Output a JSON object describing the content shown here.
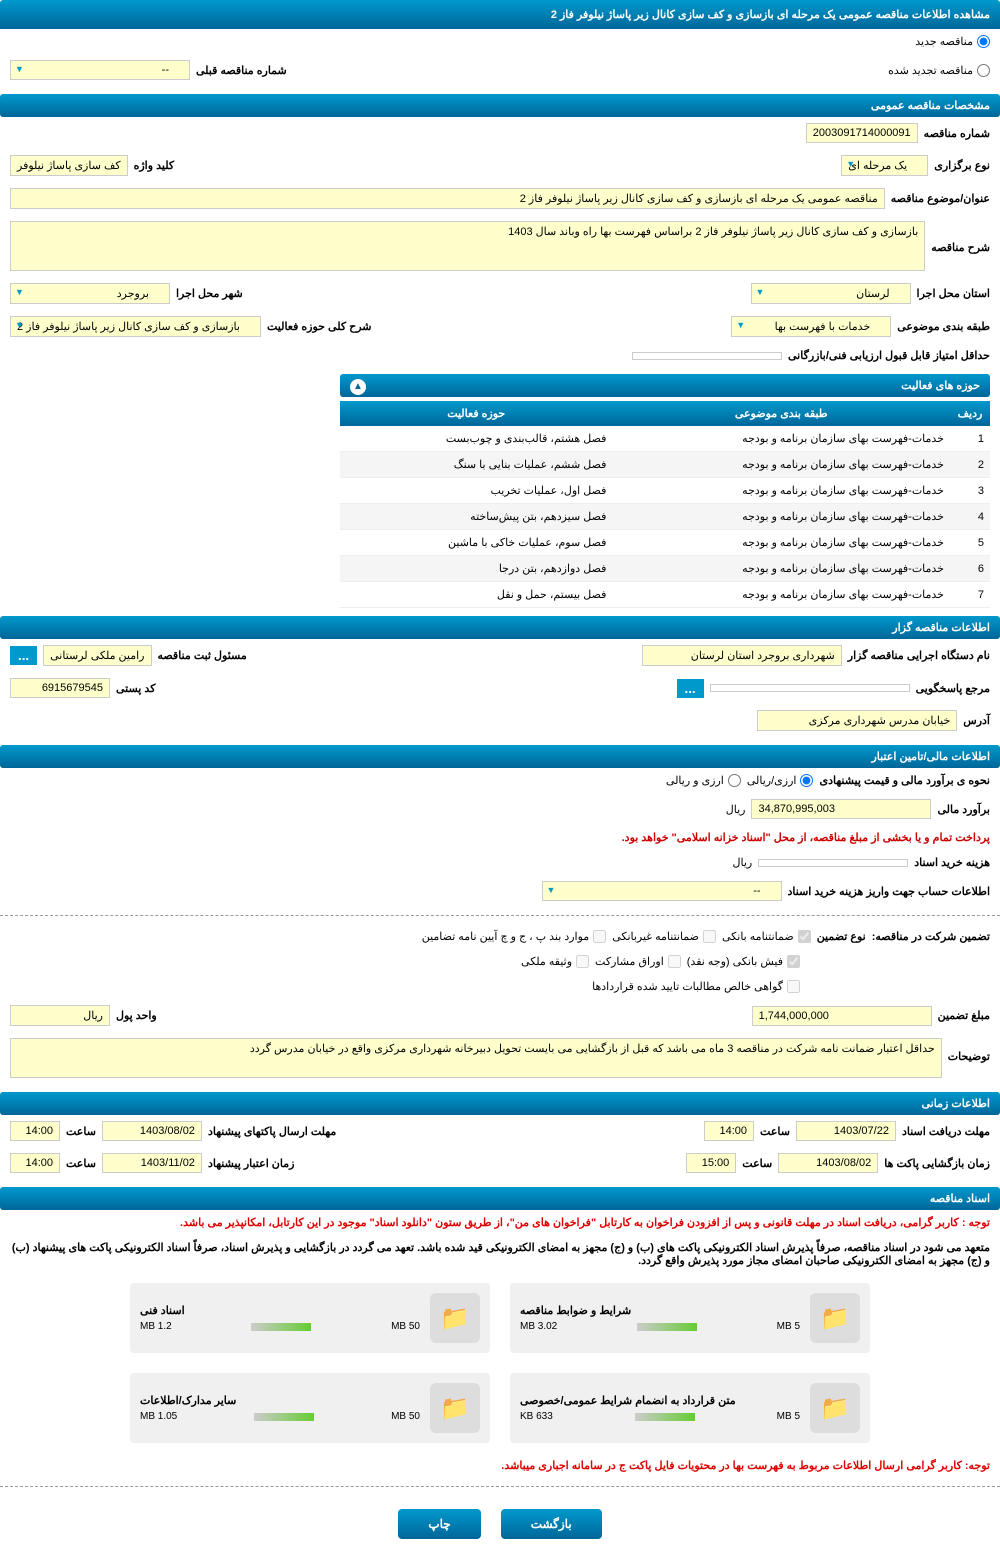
{
  "header": {
    "title": "مشاهده اطلاعات مناقصه عمومی یک مرحله ای بازسازی و کف سازی کانال زیر پاساژ نیلوفر فاز 2"
  },
  "tender_status": {
    "new_label": "مناقصه جدید",
    "renewed_label": "مناقصه تجدید شده",
    "prev_tender_label": "شماره مناقصه قبلی",
    "prev_tender_value": "--"
  },
  "general": {
    "section_title": "مشخصات مناقصه عمومی",
    "tender_number_label": "شماره مناقصه",
    "tender_number": "2003091714000091",
    "type_label": "نوع برگزاری",
    "type_value": "یک مرحله ای",
    "keyword_label": "کلید واژه",
    "keyword_value": "کف سازی پاساژ نیلوفر",
    "subject_label": "عنوان/موضوع مناقصه",
    "subject_value": "مناقصه عمومی یک مرحله ای بازسازی و کف سازی کانال زیر پاساژ نیلوفر فاز 2",
    "desc_label": "شرح مناقصه",
    "desc_value": "بازسازی و کف سازی کانال زیر پاساژ نیلوفر فاز 2 براساس فهرست بها راه وباند سال 1403",
    "province_label": "استان محل اجرا",
    "province_value": "لرستان",
    "city_label": "شهر محل اجرا",
    "city_value": "بروجرد",
    "category_label": "طبقه بندی موضوعی",
    "category_value": "خدمات با فهرست بها",
    "activity_desc_label": "شرح کلی حوزه فعالیت",
    "activity_desc_value": "بازسازی و کف سازی کانال زیر پاساژ نیلوفر فاز 2",
    "min_score_label": "حداقل امتیاز قابل قبول ارزیابی فنی/بازرگانی"
  },
  "activity_table": {
    "title": "حوزه های فعالیت",
    "cols": [
      "ردیف",
      "طبقه بندی موضوعی",
      "حوزه فعالیت"
    ],
    "rows": [
      [
        "1",
        "خدمات-فهرست بهای سازمان برنامه و بودجه",
        "فصل هشتم، قالب‌بندی و چوب‌بست"
      ],
      [
        "2",
        "خدمات-فهرست بهای سازمان برنامه و بودجه",
        "فصل ششم، عملیات بنایی با سنگ"
      ],
      [
        "3",
        "خدمات-فهرست بهای سازمان برنامه و بودجه",
        "فصل اول، عملیات تخریب"
      ],
      [
        "4",
        "خدمات-فهرست بهای سازمان برنامه و بودجه",
        "فصل سیزدهم، بتن پیش‌ساخته"
      ],
      [
        "5",
        "خدمات-فهرست بهای سازمان برنامه و بودجه",
        "فصل سوم، عملیات خاکی با ماشین"
      ],
      [
        "6",
        "خدمات-فهرست بهای سازمان برنامه و بودجه",
        "فصل دوازدهم، بتن درجا"
      ],
      [
        "7",
        "خدمات-فهرست بهای سازمان برنامه و بودجه",
        "فصل بیستم، حمل و نقل"
      ]
    ]
  },
  "organizer": {
    "section_title": "اطلاعات مناقصه گزار",
    "org_label": "نام دستگاه اجرایی مناقصه گزار",
    "org_value": "شهرداری بروجرد استان لرستان",
    "reg_manager_label": "مسئول ثبت مناقصه",
    "reg_manager_value": "رامین ملکی لرستانی",
    "response_ref_label": "مرجع پاسخگویی",
    "postal_label": "کد پستی",
    "postal_value": "6915679545",
    "address_label": "آدرس",
    "address_value": "خیابان مدرس شهرداری مرکزی"
  },
  "financial": {
    "section_title": "اطلاعات مالی/تامین اعتبار",
    "estimate_method_label": "نحوه ی برآورد مالی و قیمت پیشنهادی",
    "fx_rial": "ارزی/ریالی",
    "fx_other": "ارزی و ریالی",
    "estimate_label": "برآورد مالی",
    "estimate_value": "34,870,995,003",
    "currency": "ریال",
    "payment_note": "پرداخت تمام و یا بخشی از مبلغ مناقصه، از محل \"اسناد خزانه اسلامی\" خواهد بود.",
    "doc_fee_label": "هزینه خرید اسناد",
    "account_label": "اطلاعات حساب جهت واریز هزینه خرید اسناد",
    "account_value": "--",
    "guarantee_label": "تضمین شرکت در مناقصه:",
    "guarantee_type_label": "نوع تضمین",
    "guarantee_types": {
      "bank_guarantee": "ضمانتنامه بانکی",
      "non_bank_guarantee": "ضمانتنامه غیربانکی",
      "band_items": "موارد بند پ ، ج و چ آیین نامه تضامین",
      "cash": "فیش بانکی (وجه نقد)",
      "bonds": "اوراق مشارکت",
      "property": "وثیقه ملکی",
      "receivables": "گواهی خالص مطالبات تایید شده قراردادها"
    },
    "guarantee_amount_label": "مبلغ تضمین",
    "guarantee_amount": "1,744,000,000",
    "guarantee_unit_label": "واحد پول",
    "guarantee_unit": "ریال",
    "explain_label": "توضیحات",
    "explain_value": "حداقل اعتبار ضمانت نامه شرکت در مناقصه 3 ماه می باشد که قبل از بازگشایی می بایست تحویل دبیرخانه شهرداری مرکزی واقع در خیابان مدرس گردد"
  },
  "timing": {
    "section_title": "اطلاعات زمانی",
    "doc_receive_label": "مهلت دریافت اسناد",
    "doc_receive_date": "1403/07/22",
    "time_label": "ساعت",
    "doc_receive_time": "14:00",
    "send_deadline_label": "مهلت ارسال پاکتهای پیشنهاد",
    "send_deadline_date": "1403/08/02",
    "send_deadline_time": "14:00",
    "open_label": "زمان بازگشایی پاکت ها",
    "open_date": "1403/08/02",
    "open_time": "15:00",
    "validity_label": "زمان اعتبار پیشنهاد",
    "validity_date": "1403/11/02",
    "validity_time": "14:00"
  },
  "documents": {
    "section_title": "اسناد مناقصه",
    "notice1": "توجه : کاربر گرامی، دریافت اسناد در مهلت قانونی و پس از افزودن فراخوان به کارتابل \"فراخوان های من\"، از طریق ستون \"دانلود اسناد\" موجود در این کارتابل، امکانپذیر می باشد.",
    "notice2": "متعهد می شود در اسناد مناقصه، صرفاً پذیرش اسناد الکترونیکی پاکت های (ب) و (ج) مجهز به امضای الکترونیکی قید شده باشد. تعهد می گردد در بازگشایی و پذیرش اسناد، صرفاً اسناد الکترونیکی پاکت های پیشنهاد (ب) و (ج) مجهز به امضای الکترونیکی صاحبان امضای مجاز مورد پذیرش واقع گردد.",
    "files": [
      {
        "title": "شرایط و ضوابط مناقصه",
        "max": "5 MB",
        "size": "3.02 MB"
      },
      {
        "title": "اسناد فنی",
        "max": "50 MB",
        "size": "1.2 MB"
      },
      {
        "title": "متن قرارداد به انضمام شرایط عمومی/خصوصی",
        "max": "5 MB",
        "size": "633 KB"
      },
      {
        "title": "سایر مدارک/اطلاعات",
        "max": "50 MB",
        "size": "1.05 MB"
      }
    ],
    "footer_note": "توجه: کاربر گرامی ارسال اطلاعات مربوط به فهرست بها در محتویات فایل پاکت ج در سامانه اجباری میباشد."
  },
  "buttons": {
    "back": "بازگشت",
    "print": "چاپ"
  },
  "colors": {
    "header_bg": "#0088bb",
    "field_bg": "#ffffcc",
    "red_text": "#cc0000"
  }
}
